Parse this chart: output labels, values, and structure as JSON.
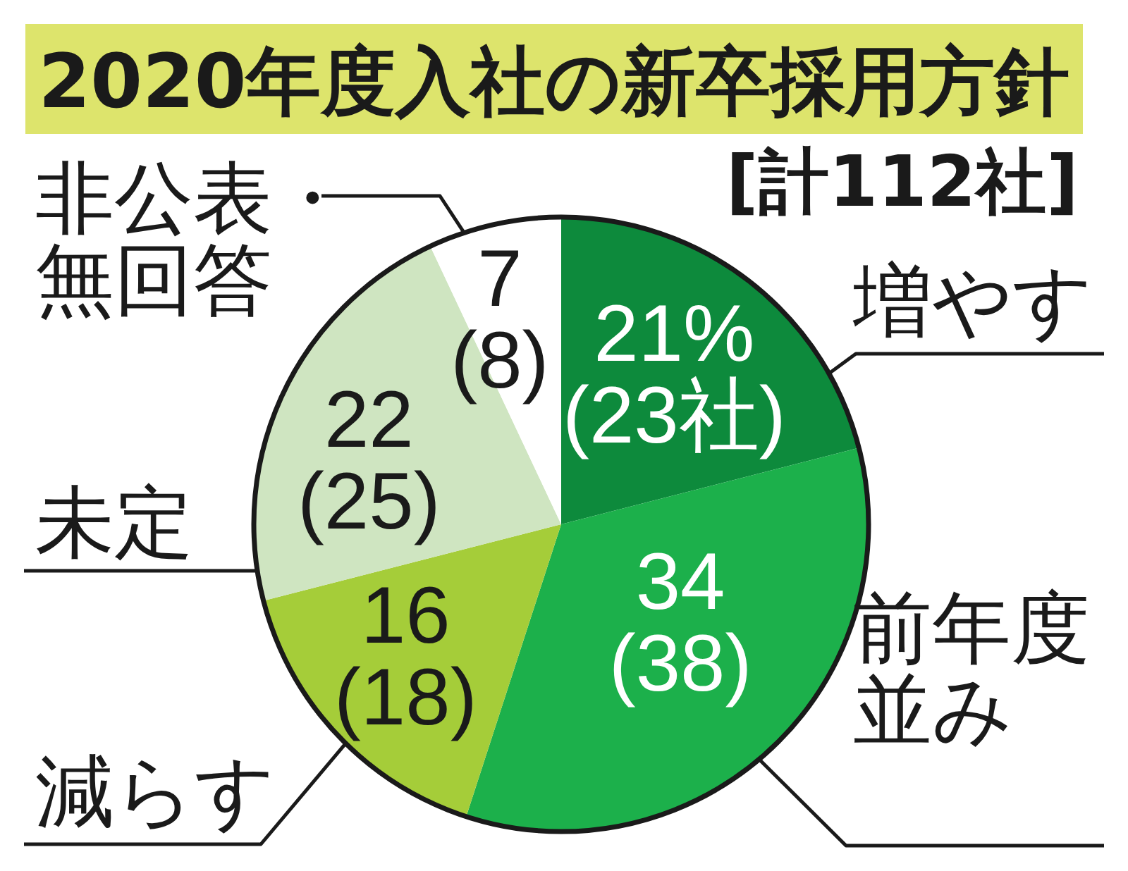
{
  "chart_data": {
    "type": "pie",
    "title": "2020年度入社の新卒採用方針",
    "subtitle": "[計112社]",
    "categories": [
      "増やす",
      "前年度並み",
      "減らす",
      "未定",
      "非公表・無回答"
    ],
    "values": [
      21,
      34,
      16,
      22,
      7
    ],
    "colors": [
      "#0d8a3c",
      "#1cb04b",
      "#a5cd39",
      "#cfe5c1",
      "#ffffff"
    ],
    "value_labels": [
      "21%\n(23社)",
      "34\n(38)",
      "16\n(18)",
      "22\n(25)",
      "7\n(8)"
    ]
  }
}
